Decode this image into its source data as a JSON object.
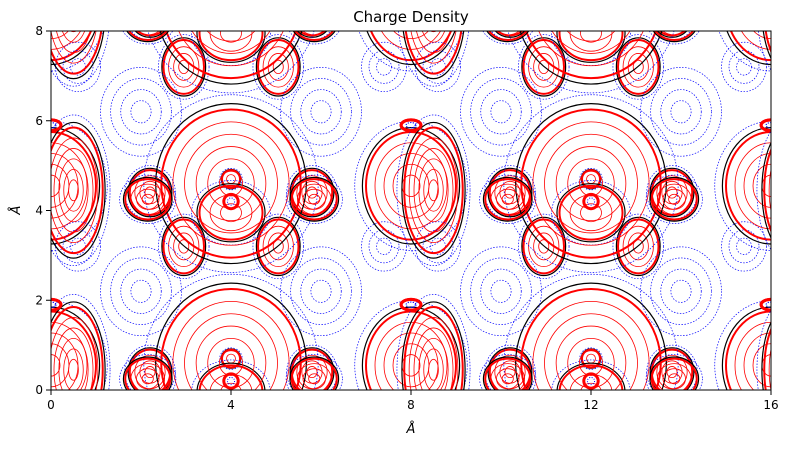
{
  "chart_data": {
    "type": "contour",
    "title": "Charge Density",
    "xlabel": "Å",
    "ylabel": "Å",
    "xlim": [
      0,
      16
    ],
    "ylim": [
      0,
      8
    ],
    "xticks": [
      0,
      4,
      8,
      12,
      16
    ],
    "yticks": [
      0,
      2,
      4,
      6,
      8
    ],
    "grid": false,
    "colors": {
      "positive_levels": "#ff0000",
      "zero_level": "#000000",
      "negative_levels": "#0000ff"
    },
    "period": [
      8,
      4
    ],
    "basis_features": [
      {
        "kind": "lobe",
        "x": 4.0,
        "y": 0.6,
        "rx": 1.55,
        "ry": 1.65,
        "levels": 6
      },
      {
        "kind": "lobe",
        "x": 4.0,
        "y": 4.7,
        "rx": 0.2,
        "ry": 0.2,
        "levels": 2
      },
      {
        "kind": "lobe",
        "x": 0.5,
        "y": 0.45,
        "rx": 0.65,
        "ry": 1.4,
        "levels": 6
      },
      {
        "kind": "lobe",
        "x": 8.0,
        "y": 0.55,
        "rx": 1.0,
        "ry": 1.2,
        "levels": 5
      },
      {
        "kind": "lobe",
        "x": 2.15,
        "y": 0.25,
        "rx": 0.5,
        "ry": 0.45,
        "levels": 4
      },
      {
        "kind": "lobe",
        "x": 5.85,
        "y": 0.25,
        "rx": 0.5,
        "ry": 0.45,
        "levels": 4
      },
      {
        "kind": "lobe",
        "x": 2.95,
        "y": 3.2,
        "rx": 0.45,
        "ry": 0.6,
        "levels": 4
      },
      {
        "kind": "lobe",
        "x": 5.05,
        "y": 3.2,
        "rx": 0.45,
        "ry": 0.6,
        "levels": 4
      },
      {
        "kind": "lobe",
        "x": 2.2,
        "y": 4.4,
        "rx": 0.45,
        "ry": 0.5,
        "levels": 4
      },
      {
        "kind": "lobe",
        "x": 5.8,
        "y": 4.4,
        "rx": 0.45,
        "ry": 0.5,
        "levels": 4
      },
      {
        "kind": "lobe",
        "x": 4.0,
        "y": 3.95,
        "rx": 0.7,
        "ry": 0.6,
        "levels": 3
      },
      {
        "kind": "ring",
        "x": 8.0,
        "y": 1.9,
        "rx": 0.22,
        "ry": 0.12
      },
      {
        "kind": "ring",
        "x": 0.0,
        "y": 1.9,
        "rx": 0.22,
        "ry": 0.12
      },
      {
        "kind": "ring",
        "x": 4.0,
        "y": 4.2,
        "rx": 0.16,
        "ry": 0.16
      },
      {
        "kind": "blue_basin",
        "x": 2.0,
        "y": 2.2,
        "rx": 0.9,
        "ry": 0.9,
        "levels": 4
      },
      {
        "kind": "blue_basin",
        "x": 6.0,
        "y": 2.2,
        "rx": 0.9,
        "ry": 0.9,
        "levels": 4
      },
      {
        "kind": "blue_basin",
        "x": 0.6,
        "y": 3.2,
        "rx": 0.5,
        "ry": 0.5,
        "levels": 3
      },
      {
        "kind": "blue_basin",
        "x": 7.4,
        "y": 3.2,
        "rx": 0.5,
        "ry": 0.5,
        "levels": 3
      }
    ]
  }
}
